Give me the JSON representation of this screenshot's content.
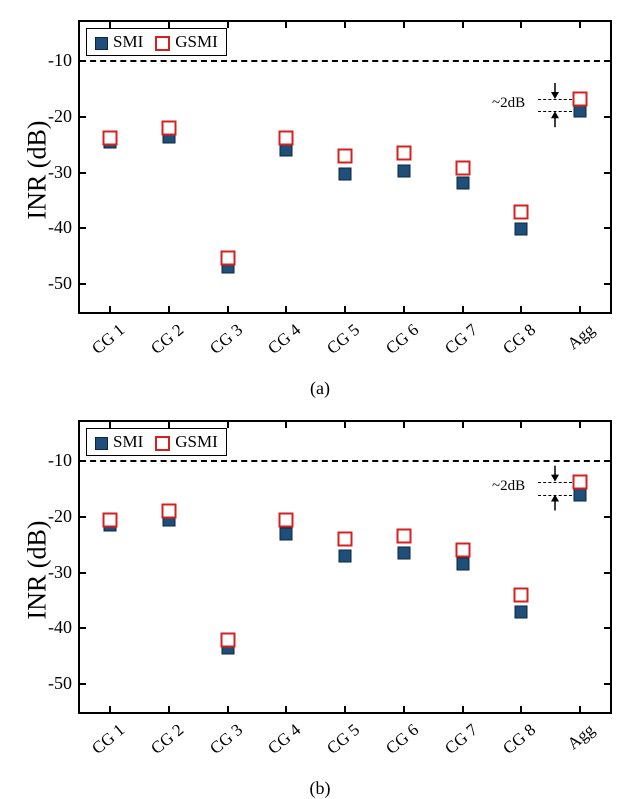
{
  "global": {
    "categories": [
      "CG 1",
      "CG 2",
      "CG 3",
      "CG 4",
      "CG 5",
      "CG 6",
      "CG 7",
      "CG 8",
      "Agg"
    ],
    "ylabel": "INR (dB)",
    "ylim": [
      -55,
      -3
    ],
    "yticks": [
      -10,
      -20,
      -30,
      -40,
      -50
    ],
    "threshold_y": -10,
    "legend": {
      "smi": "SMI",
      "gsmi": "GSMI"
    },
    "colors": {
      "smi_fill": "#1f4e79",
      "smi_edge": "#0a2540",
      "gsmi_edge": "#d62020",
      "bg": "#ffffff",
      "axis": "#000000"
    },
    "annotation_text": "~2dB",
    "label_fontsize": 26,
    "tick_fontsize": 18
  },
  "panel_a": {
    "caption": "(a)",
    "smi": [
      -24.5,
      -23.7,
      -47.0,
      -26.0,
      -30.2,
      -29.7,
      -31.8,
      -40.2,
      -19.0
    ],
    "gsmi": [
      -23.8,
      -22.0,
      -45.3,
      -23.8,
      -27.0,
      -26.5,
      -29.2,
      -37.0,
      -16.8
    ],
    "annot_y_upper": -16.8,
    "annot_y_lower": -19.0
  },
  "panel_b": {
    "caption": "(b)",
    "smi": [
      -21.5,
      -20.5,
      -43.5,
      -23.0,
      -27.0,
      -26.5,
      -28.5,
      -37.0,
      -16.0
    ],
    "gsmi": [
      -20.5,
      -19.0,
      -42.0,
      -20.5,
      -24.0,
      -23.5,
      -26.0,
      -34.0,
      -13.7
    ],
    "annot_y_upper": -13.7,
    "annot_y_lower": -16.0
  }
}
